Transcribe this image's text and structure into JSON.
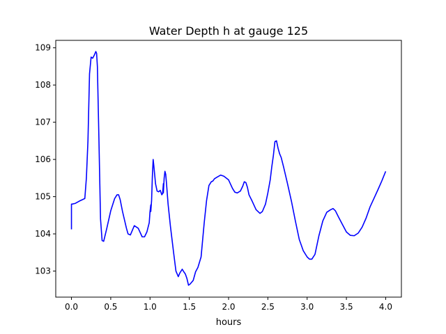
{
  "chart_data": {
    "type": "line",
    "title": "Water Depth h at gauge 125",
    "xlabel": "hours",
    "ylabel": "",
    "xlim": [
      -0.2,
      4.2
    ],
    "ylim": [
      102.3,
      109.2
    ],
    "xticks": [
      0.0,
      0.5,
      1.0,
      1.5,
      2.0,
      2.5,
      3.0,
      3.5,
      4.0
    ],
    "xtick_labels": [
      "0.0",
      "0.5",
      "1.0",
      "1.5",
      "2.0",
      "2.5",
      "3.0",
      "3.5",
      "4.0"
    ],
    "yticks": [
      103,
      104,
      105,
      106,
      107,
      108,
      109
    ],
    "ytick_labels": [
      "103",
      "104",
      "105",
      "106",
      "107",
      "108",
      "109"
    ],
    "grid": false,
    "series": [
      {
        "color": "#0000ff",
        "x": [
          0.0,
          0.0,
          0.01,
          0.05,
          0.1,
          0.15,
          0.17,
          0.19,
          0.21,
          0.23,
          0.25,
          0.27,
          0.29,
          0.31,
          0.32,
          0.33,
          0.35,
          0.37,
          0.39,
          0.41,
          0.45,
          0.5,
          0.55,
          0.58,
          0.6,
          0.62,
          0.65,
          0.7,
          0.72,
          0.75,
          0.8,
          0.85,
          0.9,
          0.93,
          0.96,
          0.99,
          1.0,
          1.01,
          1.01,
          1.02,
          1.03,
          1.04,
          1.05,
          1.07,
          1.09,
          1.11,
          1.13,
          1.15,
          1.16,
          1.17,
          1.17,
          1.18,
          1.19,
          1.2,
          1.21,
          1.23,
          1.26,
          1.3,
          1.33,
          1.36,
          1.38,
          1.41,
          1.43,
          1.45,
          1.47,
          1.49,
          1.51,
          1.53,
          1.55,
          1.58,
          1.61,
          1.65,
          1.69,
          1.72,
          1.75,
          1.78,
          1.8,
          1.82,
          1.85,
          1.9,
          1.94,
          2.0,
          2.05,
          2.08,
          2.11,
          2.15,
          2.18,
          2.2,
          2.22,
          2.24,
          2.26,
          2.3,
          2.35,
          2.4,
          2.43,
          2.47,
          2.5,
          2.53,
          2.55,
          2.57,
          2.59,
          2.61,
          2.63,
          2.65,
          2.67,
          2.7,
          2.75,
          2.8,
          2.85,
          2.9,
          2.95,
          3.0,
          3.03,
          3.06,
          3.1,
          3.15,
          3.2,
          3.25,
          3.3,
          3.33,
          3.36,
          3.4,
          3.45,
          3.5,
          3.55,
          3.6,
          3.65,
          3.7,
          3.75,
          3.8,
          3.85,
          3.9,
          3.95,
          4.0
        ],
        "y": [
          104.12,
          104.8,
          104.8,
          104.82,
          104.88,
          104.93,
          104.95,
          105.5,
          106.5,
          108.3,
          108.75,
          108.72,
          108.8,
          108.9,
          108.85,
          108.5,
          106.5,
          104.4,
          103.82,
          103.8,
          104.15,
          104.62,
          104.95,
          105.05,
          105.05,
          104.92,
          104.6,
          104.15,
          104.0,
          103.97,
          104.22,
          104.15,
          103.92,
          103.92,
          104.05,
          104.3,
          104.6,
          104.78,
          104.6,
          104.9,
          105.55,
          106.0,
          105.8,
          105.35,
          105.15,
          105.13,
          105.17,
          105.05,
          105.08,
          105.35,
          105.1,
          105.5,
          105.68,
          105.6,
          105.35,
          104.8,
          104.2,
          103.5,
          103.0,
          102.85,
          102.95,
          103.05,
          102.98,
          102.92,
          102.8,
          102.62,
          102.65,
          102.7,
          102.75,
          102.98,
          103.1,
          103.38,
          104.3,
          104.9,
          105.3,
          105.4,
          105.42,
          105.48,
          105.52,
          105.58,
          105.55,
          105.45,
          105.22,
          105.12,
          105.1,
          105.15,
          105.28,
          105.4,
          105.38,
          105.25,
          105.05,
          104.88,
          104.65,
          104.55,
          104.6,
          104.8,
          105.1,
          105.45,
          105.8,
          106.1,
          106.48,
          106.5,
          106.3,
          106.15,
          106.05,
          105.8,
          105.35,
          104.88,
          104.35,
          103.85,
          103.55,
          103.38,
          103.32,
          103.32,
          103.45,
          103.95,
          104.35,
          104.58,
          104.65,
          104.68,
          104.62,
          104.45,
          104.25,
          104.05,
          103.96,
          103.95,
          104.02,
          104.18,
          104.42,
          104.72,
          104.95,
          105.18,
          105.42,
          105.68
        ]
      }
    ]
  }
}
